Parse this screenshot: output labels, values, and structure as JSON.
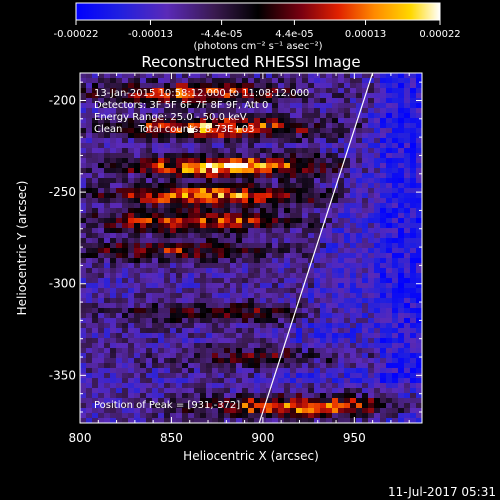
{
  "colorbar": {
    "ticks": [
      "-0.00022",
      "-0.00013",
      "-4.4e-05",
      "4.4e-05",
      "0.00013",
      "0.00022"
    ],
    "tick_values": [
      -0.00022,
      -0.00013,
      -4.4e-05,
      4.4e-05,
      0.00013,
      0.00022
    ],
    "range": [
      -0.00022,
      0.00022
    ],
    "unit_label": "(photons cm⁻² s⁻¹ asec⁻²)"
  },
  "chart_data": {
    "type": "heatmap",
    "title": "Reconstructed RHESSI Image",
    "xlabel": "Heliocentric X (arcsec)",
    "ylabel": "Heliocentric Y (arcsec)",
    "xlim": [
      800,
      987
    ],
    "ylim": [
      -376,
      -185
    ],
    "x_ticks": [
      "800",
      "850",
      "900",
      "950"
    ],
    "x_tick_values": [
      800,
      850,
      900,
      950
    ],
    "y_ticks": [
      "-200",
      "-250",
      "-300",
      "-350"
    ],
    "y_tick_values": [
      -200,
      -250,
      -300,
      -350
    ],
    "annotations": [
      "13-Jan-2015 10:58:12.000 to 11:08:12.000",
      "Detectors: 3F 5F 6F 7F 8F 9F, Att 0",
      "Energy Range: 25.0 - 50.0 keV",
      "Clean     Total counts: 8.73E+03"
    ],
    "peak_label": "Position of Peak = [931,-372]",
    "peak": [
      931,
      -372
    ],
    "limb_line": {
      "x": [
        898,
        960
      ],
      "y": [
        -376,
        -185
      ]
    },
    "bright_bands": [
      {
        "y": -196,
        "x_center": 860,
        "strength": 0.7
      },
      {
        "y": -215,
        "x_center": 875,
        "strength": 0.85
      },
      {
        "y": -236,
        "x_center": 880,
        "strength": 1.0
      },
      {
        "y": -252,
        "x_center": 872,
        "strength": 0.85
      },
      {
        "y": -266,
        "x_center": 860,
        "strength": 0.75
      },
      {
        "y": -282,
        "x_center": 850,
        "strength": 0.55
      },
      {
        "y": -316,
        "x_center": 875,
        "strength": 0.45
      },
      {
        "y": -340,
        "x_center": 900,
        "strength": 0.4
      },
      {
        "y": -367,
        "x_center": 920,
        "strength": 0.85
      }
    ]
  },
  "footer": {
    "timestamp": "11-Jul-2017 05:31"
  }
}
